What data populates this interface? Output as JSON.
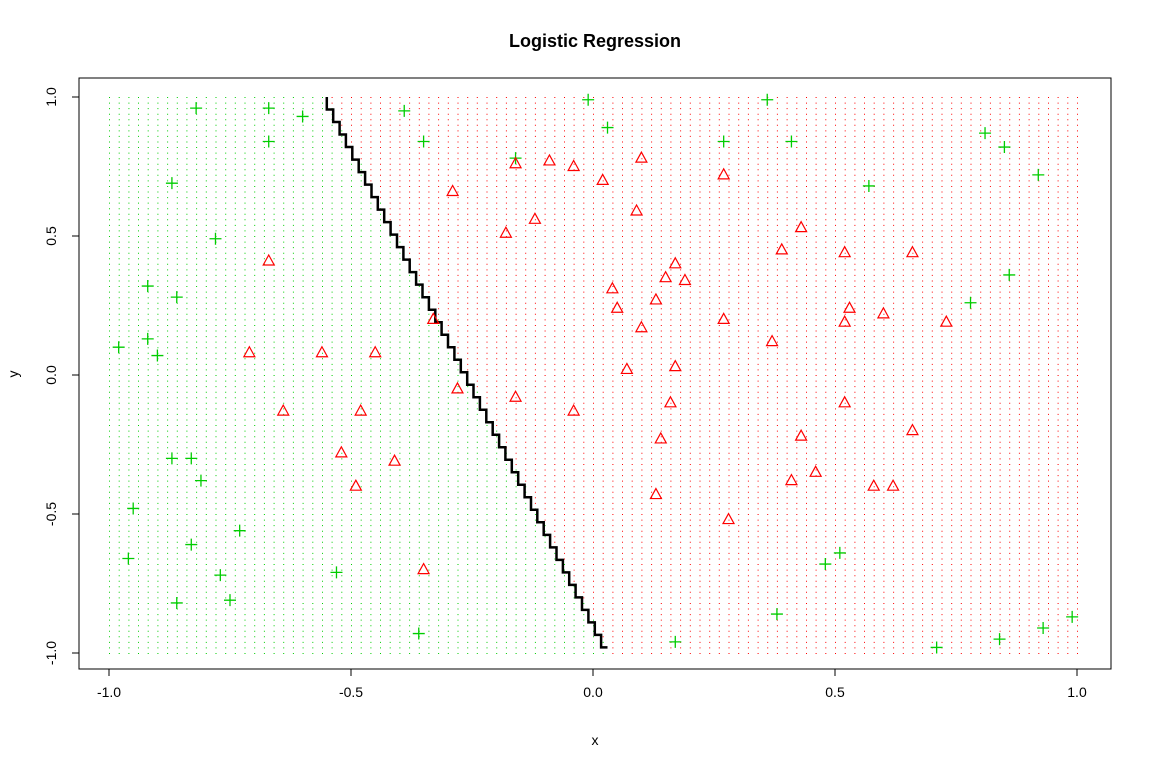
{
  "chart_data": {
    "type": "scatter",
    "title": "Logistic Regression",
    "xlabel": "x",
    "ylabel": "y",
    "xlim": [
      -1.0,
      1.0
    ],
    "ylim": [
      -1.0,
      1.0
    ],
    "xticks": [
      "-1.0",
      "-0.5",
      "0.0",
      "0.5",
      "1.0"
    ],
    "yticks": [
      "-1.0",
      "-0.5",
      "0.0",
      "0.5",
      "1.0"
    ],
    "grid": false,
    "legend": "none",
    "colors": {
      "green": "#00CD00",
      "red": "#FF0000",
      "boundary": "#000000"
    },
    "decision_boundary": [
      [
        -0.55,
        1.0
      ],
      [
        0.03,
        -0.98
      ]
    ],
    "series": [
      {
        "marker": "plus",
        "color": "#00CD00",
        "points": [
          [
            -0.98,
            0.1
          ],
          [
            -0.96,
            -0.66
          ],
          [
            -0.95,
            -0.48
          ],
          [
            -0.92,
            0.32
          ],
          [
            -0.92,
            0.13
          ],
          [
            -0.9,
            0.07
          ],
          [
            -0.87,
            0.69
          ],
          [
            -0.86,
            0.28
          ],
          [
            -0.86,
            -0.82
          ],
          [
            -0.87,
            -0.3
          ],
          [
            -0.83,
            -0.3
          ],
          [
            -0.83,
            -0.61
          ],
          [
            -0.81,
            -0.38
          ],
          [
            -0.82,
            0.96
          ],
          [
            -0.78,
            0.49
          ],
          [
            -0.77,
            -0.72
          ],
          [
            -0.75,
            -0.81
          ],
          [
            -0.73,
            -0.56
          ],
          [
            -0.67,
            0.96
          ],
          [
            -0.67,
            0.84
          ],
          [
            -0.6,
            0.93
          ],
          [
            -0.53,
            -0.71
          ],
          [
            -0.39,
            0.95
          ],
          [
            -0.35,
            0.84
          ],
          [
            -0.36,
            -0.93
          ],
          [
            -0.16,
            0.78
          ],
          [
            -0.01,
            0.99
          ],
          [
            0.03,
            0.89
          ],
          [
            0.17,
            -0.96
          ],
          [
            0.27,
            0.84
          ],
          [
            0.36,
            0.99
          ],
          [
            0.38,
            -0.86
          ],
          [
            0.41,
            0.84
          ],
          [
            0.48,
            -0.68
          ],
          [
            0.51,
            -0.64
          ],
          [
            0.57,
            0.68
          ],
          [
            0.71,
            -0.98
          ],
          [
            0.78,
            0.26
          ],
          [
            0.81,
            0.87
          ],
          [
            0.84,
            -0.95
          ],
          [
            0.85,
            0.82
          ],
          [
            0.86,
            0.36
          ],
          [
            0.92,
            0.72
          ],
          [
            0.93,
            -0.91
          ],
          [
            0.99,
            -0.87
          ]
        ]
      },
      {
        "marker": "triangle",
        "color": "#FF0000",
        "points": [
          [
            -0.71,
            0.08
          ],
          [
            -0.67,
            0.41
          ],
          [
            -0.64,
            -0.13
          ],
          [
            -0.56,
            0.08
          ],
          [
            -0.52,
            -0.28
          ],
          [
            -0.49,
            -0.4
          ],
          [
            -0.48,
            -0.13
          ],
          [
            -0.45,
            0.08
          ],
          [
            -0.41,
            -0.31
          ],
          [
            -0.35,
            -0.7
          ],
          [
            -0.33,
            0.2
          ],
          [
            -0.29,
            0.66
          ],
          [
            -0.28,
            -0.05
          ],
          [
            -0.18,
            0.51
          ],
          [
            -0.16,
            0.76
          ],
          [
            -0.16,
            -0.08
          ],
          [
            -0.12,
            0.56
          ],
          [
            -0.09,
            0.77
          ],
          [
            -0.04,
            0.75
          ],
          [
            -0.04,
            -0.13
          ],
          [
            0.02,
            0.7
          ],
          [
            0.04,
            0.31
          ],
          [
            0.05,
            0.24
          ],
          [
            0.07,
            0.02
          ],
          [
            0.1,
            0.78
          ],
          [
            0.09,
            0.59
          ],
          [
            0.1,
            0.17
          ],
          [
            0.13,
            0.27
          ],
          [
            0.13,
            -0.43
          ],
          [
            0.14,
            -0.23
          ],
          [
            0.15,
            0.35
          ],
          [
            0.16,
            -0.1
          ],
          [
            0.17,
            0.4
          ],
          [
            0.17,
            0.03
          ],
          [
            0.19,
            0.34
          ],
          [
            0.27,
            0.72
          ],
          [
            0.27,
            0.2
          ],
          [
            0.28,
            -0.52
          ],
          [
            0.37,
            0.12
          ],
          [
            0.39,
            0.45
          ],
          [
            0.41,
            -0.38
          ],
          [
            0.43,
            0.53
          ],
          [
            0.43,
            -0.22
          ],
          [
            0.46,
            -0.35
          ],
          [
            0.52,
            0.44
          ],
          [
            0.52,
            0.19
          ],
          [
            0.52,
            -0.1
          ],
          [
            0.53,
            0.24
          ],
          [
            0.58,
            -0.4
          ],
          [
            0.6,
            0.22
          ],
          [
            0.62,
            -0.4
          ],
          [
            0.66,
            0.44
          ],
          [
            0.66,
            -0.2
          ],
          [
            0.73,
            0.19
          ]
        ]
      }
    ]
  }
}
